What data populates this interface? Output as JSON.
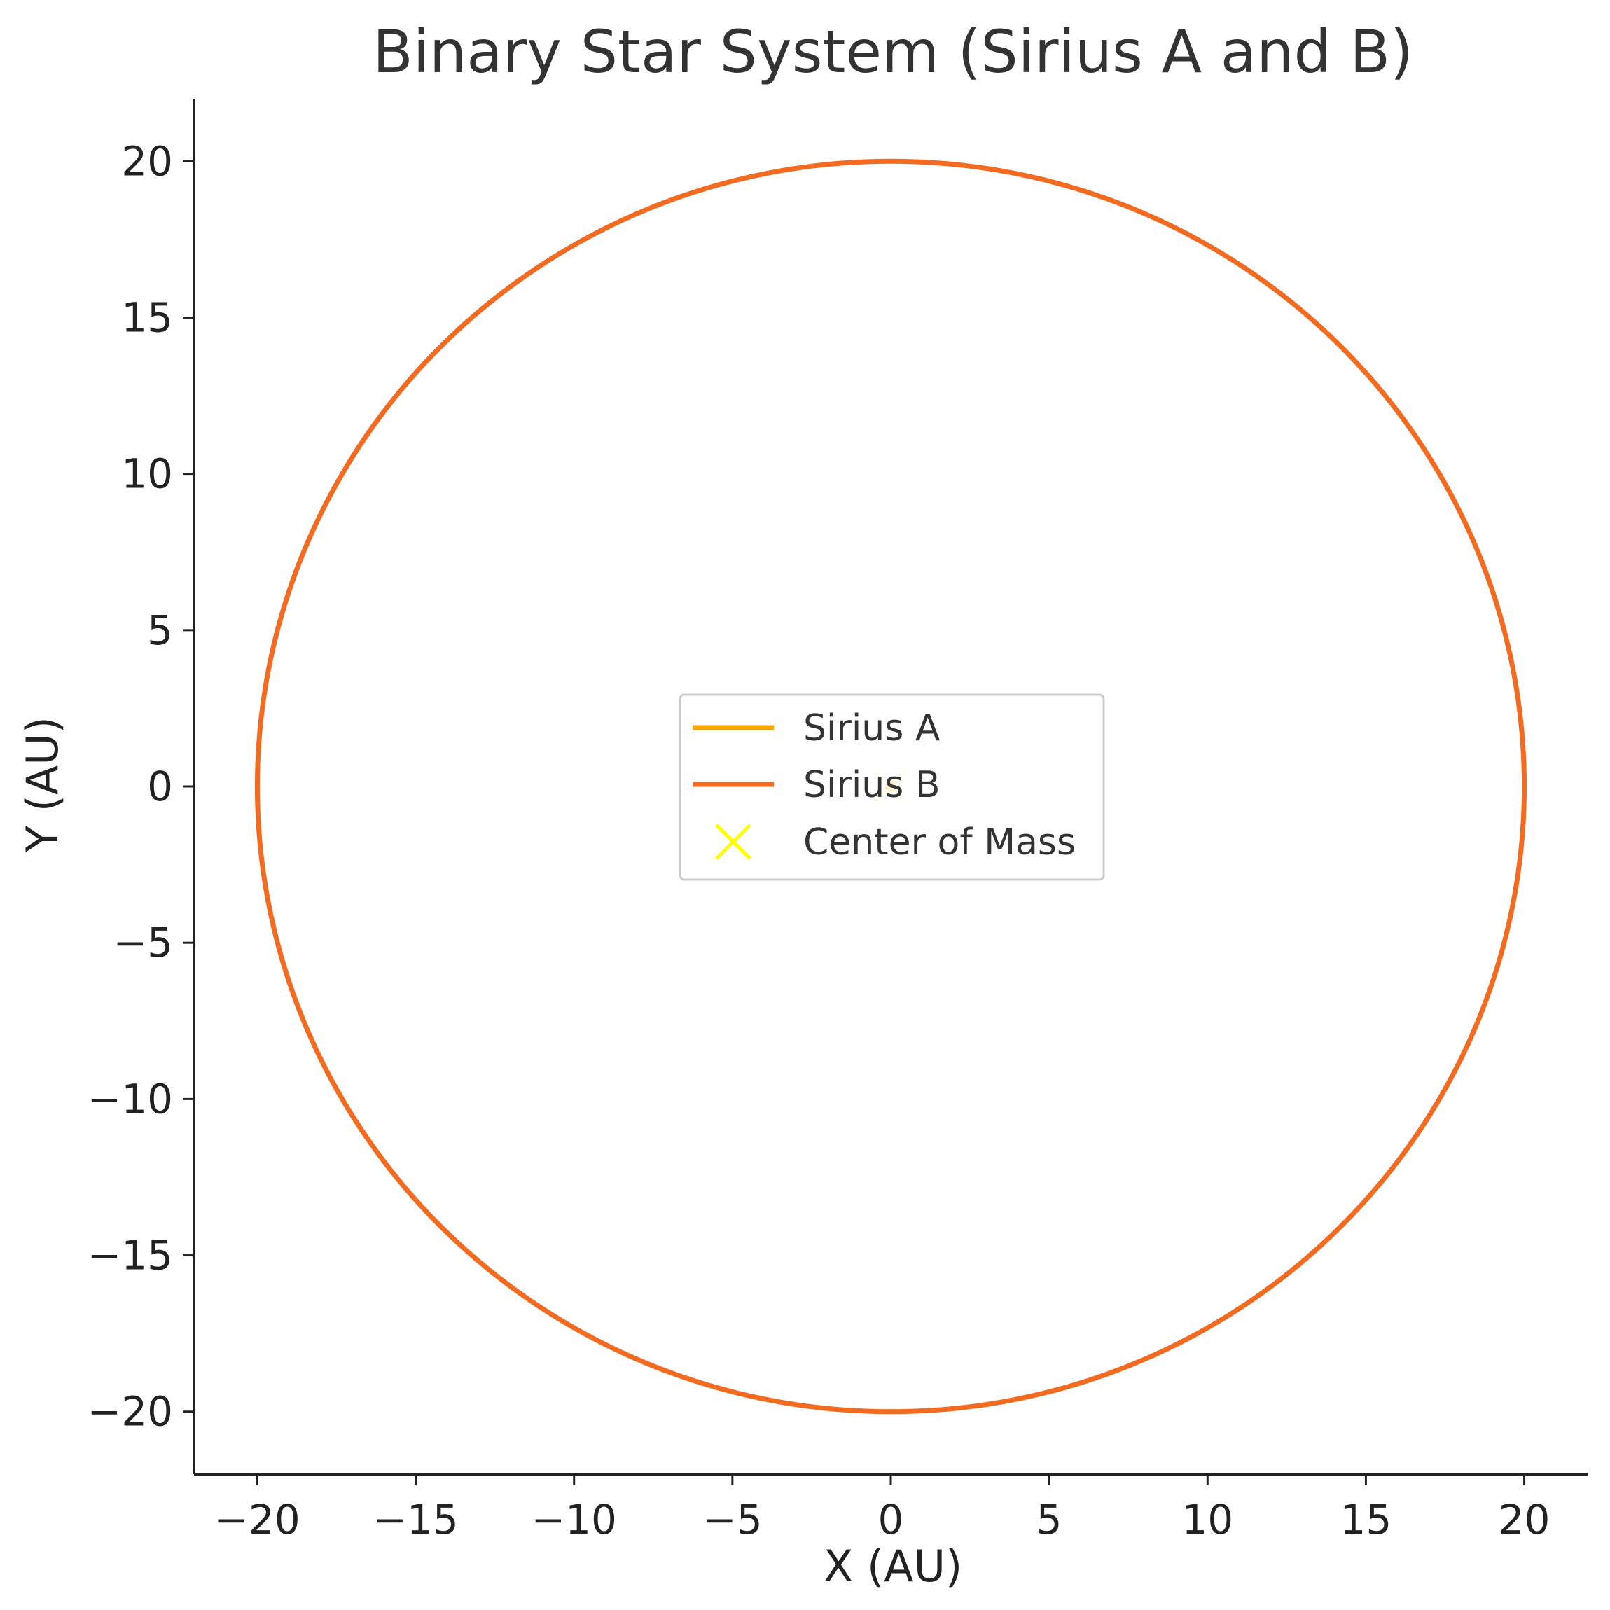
{
  "chart_data": {
    "type": "line",
    "title": "Binary Star System (Sirius A and B)",
    "xlabel": "X (AU)",
    "ylabel": "Y (AU)",
    "xlim": [
      -22,
      22
    ],
    "ylim": [
      -22,
      22
    ],
    "xticks": [
      -20,
      -15,
      -10,
      -5,
      0,
      5,
      10,
      15,
      20
    ],
    "yticks": [
      -20,
      -15,
      -10,
      -5,
      0,
      5,
      10,
      15,
      20
    ],
    "xtick_labels": [
      "−20",
      "−15",
      "−10",
      "−5",
      "0",
      "5",
      "10",
      "15",
      "20"
    ],
    "ytick_labels": [
      "−20",
      "−15",
      "−10",
      "−5",
      "0",
      "5",
      "10",
      "15",
      "20"
    ],
    "grid": false,
    "legend_position": "center",
    "series": [
      {
        "name": "Sirius A",
        "kind": "orbit",
        "center": [
          0,
          0
        ],
        "radius": 0.1,
        "color": "#FFA500"
      },
      {
        "name": "Sirius B",
        "kind": "orbit",
        "center": [
          0,
          0
        ],
        "radius": 20,
        "color": "#F26B21"
      },
      {
        "name": "Center of Mass",
        "kind": "marker",
        "x": [
          0
        ],
        "y": [
          0
        ],
        "marker": "x",
        "color": "#FFFF00"
      }
    ]
  }
}
